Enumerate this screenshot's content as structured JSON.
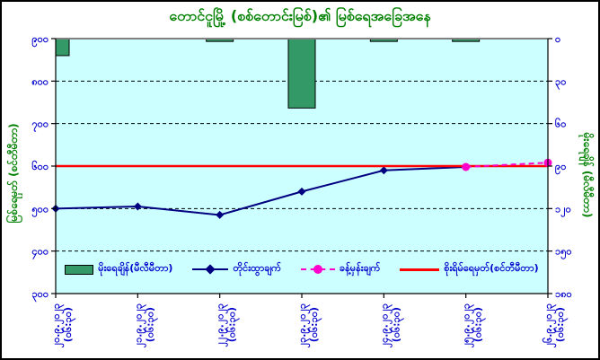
{
  "title": "တောင်ငူမြို့ (စစ်တောင်းမြစ်)၏ မြစ်ရေအခြေအနေ",
  "colors": {
    "title_green": "#008000",
    "axis_label_blue": "#0000CC",
    "plot_background": "#CCFFFF",
    "rainfall_bar": "#339966",
    "measured_line": "#000080",
    "forecast_line": "#FF00CC",
    "danger_line": "#FF0000",
    "gridline": "#000000",
    "plot_top_border": "#808080"
  },
  "chart_data": {
    "type": "combo-bar-line",
    "grid": "horizontal-dashed",
    "legend_position": "bottom-inside",
    "categories": [
      {
        "date": "၂၀.၉.၂၀၂၃",
        "time": "(၀၆:၃၀)"
      },
      {
        "date": "၂၁.၉.၂၀၂၃",
        "time": "(၀၆:၃၀)"
      },
      {
        "date": "၂၂.၉.၂၀၂၃",
        "time": "(၀၆:၃၀)"
      },
      {
        "date": "၂၃.၉.၂၀၂၃",
        "time": "(၀၆:၃၀)"
      },
      {
        "date": "၂၄.၉.၂၀၂၃",
        "time": "(၀၆:၃၀)"
      },
      {
        "date": "၂၅.၉.၂၀၂၃",
        "time": "(၀၆:၃၀)"
      },
      {
        "date": "၂၆.၉.၂၀၂၃",
        "time": "(၀၆:၃၀)"
      }
    ],
    "left_axis": {
      "title": "မြစ်ရေမှတ် (စင်တီမီတာ)",
      "min": 300,
      "max": 900,
      "tick_values": [
        900,
        800,
        700,
        600,
        500,
        400,
        300
      ],
      "tick_labels": [
        "၉၀၀",
        "၈၀၀",
        "၇၀၀",
        "၆၀၀",
        "၅၀၀",
        "၄၀၀",
        "၃၀၀"
      ]
    },
    "right_axis": {
      "title": "မိုးရေချိန် (မီလီမီတာ)",
      "min": 0,
      "max": 180,
      "inverted": true,
      "tick_values": [
        0,
        30,
        60,
        90,
        120,
        150,
        180
      ],
      "tick_labels": [
        "၀",
        "၃၀",
        "၆၀",
        "၉၀",
        "၁၂၀",
        "၁၅၀",
        "၁၈၀"
      ]
    },
    "series": [
      {
        "name": "မိုးရေချိန်(မီလီမီတာ)",
        "type": "bar",
        "axis": "right",
        "values": [
          12,
          null,
          2,
          49,
          2,
          2,
          null
        ]
      },
      {
        "name": "တိုင်းထွာချက်",
        "type": "line",
        "marker": "diamond",
        "axis": "left",
        "values": [
          500,
          505,
          485,
          540,
          590,
          598,
          null
        ]
      },
      {
        "name": "ခန့်မှန်းချက်",
        "type": "dashed-line",
        "marker": "circle",
        "axis": "left",
        "values": [
          null,
          null,
          null,
          null,
          null,
          598,
          608
        ]
      },
      {
        "name": "စိုးရိမ်ရေမှတ်(စင်တီမီတာ)",
        "type": "hline",
        "axis": "left",
        "value": 600
      }
    ]
  }
}
